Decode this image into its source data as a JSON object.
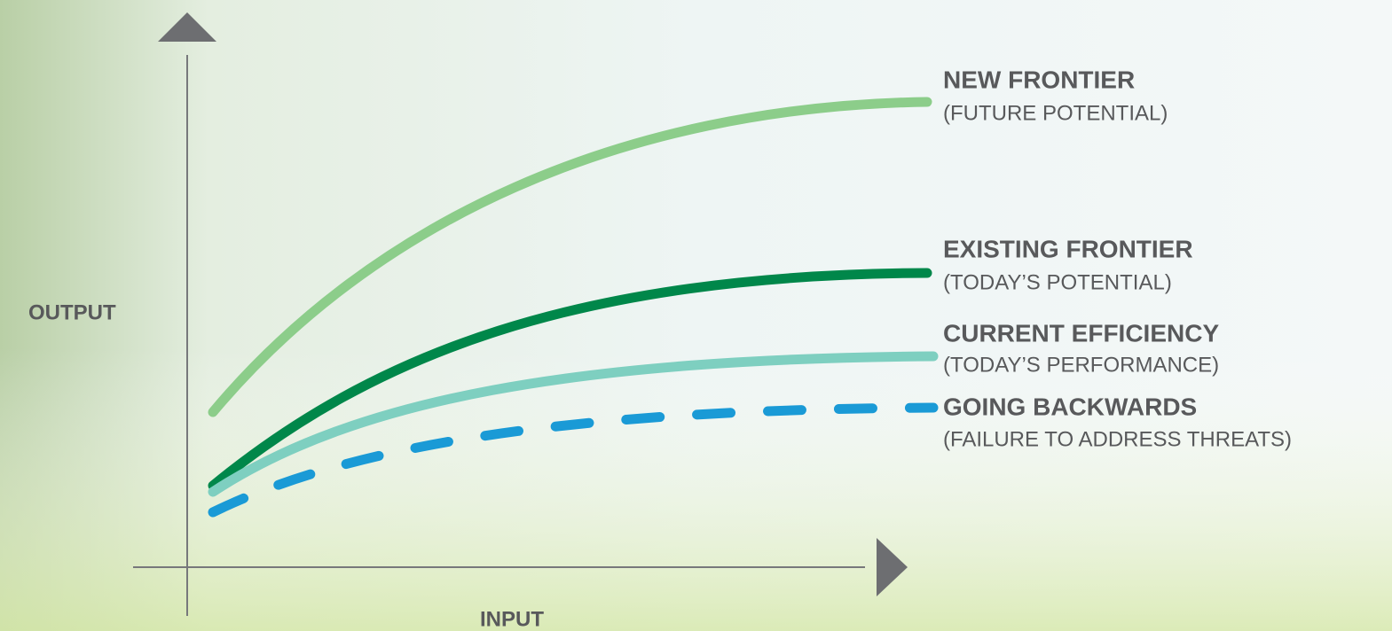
{
  "axes": {
    "y_label": "OUTPUT",
    "x_label": "INPUT"
  },
  "curves": [
    {
      "title": "NEW FRONTIER",
      "subtitle": "(FUTURE POTENTIAL)"
    },
    {
      "title": "EXISTING FRONTIER",
      "subtitle": "(TODAY’S POTENTIAL)"
    },
    {
      "title": "CURRENT EFFICIENCY",
      "subtitle": "(TODAY’S PERFORMANCE)"
    },
    {
      "title": "GOING BACKWARDS",
      "subtitle": "(FAILURE TO ADDRESS THREATS)"
    }
  ]
}
